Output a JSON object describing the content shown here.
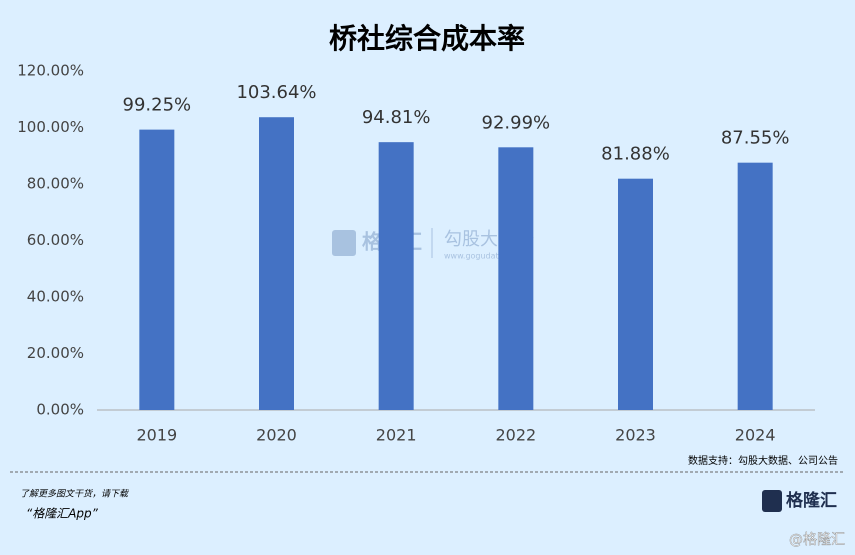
{
  "chart_data": {
    "type": "bar",
    "title": "桥社综合成本率",
    "categories": [
      "2019",
      "2020",
      "2021",
      "2022",
      "2023",
      "2024"
    ],
    "values": [
      99.25,
      103.64,
      94.81,
      92.99,
      81.88,
      87.55
    ],
    "value_labels": [
      "99.25%",
      "103.64%",
      "94.81%",
      "92.99%",
      "81.88%",
      "87.55%"
    ],
    "color": "#4472c4",
    "ylim": [
      0,
      120
    ],
    "yticks": [
      {
        "value": 0,
        "label": "0.00%"
      },
      {
        "value": 20,
        "label": "20.00%"
      },
      {
        "value": 40,
        "label": "40.00%"
      },
      {
        "value": 60,
        "label": "60.00%"
      },
      {
        "value": 80,
        "label": "80.00%"
      },
      {
        "value": 100,
        "label": "100.00%"
      },
      {
        "value": 120,
        "label": "120.00%"
      }
    ],
    "grid": false,
    "source": "数据支持：勾股大数据、公司公告"
  },
  "watermark": {
    "brand": "格隆汇",
    "partner": "勾股大数据",
    "url": "www.gogudata.com"
  },
  "footer": {
    "promo": "了解更多图文干货，请下载",
    "app": "“格隆汇App”",
    "logo": "格隆汇",
    "handle": "@格隆汇"
  }
}
